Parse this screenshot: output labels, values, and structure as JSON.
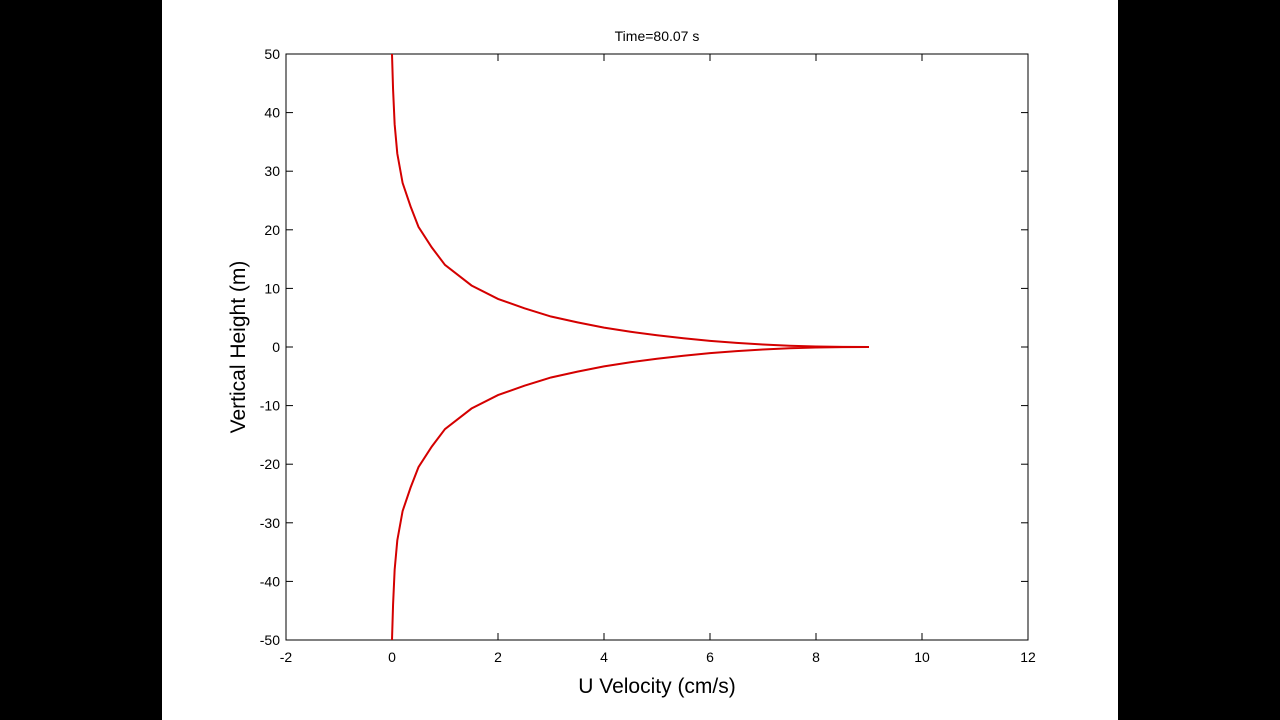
{
  "chart_data": {
    "type": "line",
    "title": "Time=80.07 s",
    "xlabel": "U Velocity (cm/s)",
    "ylabel": "Vertical Height (m)",
    "xlim": [
      -2,
      12
    ],
    "ylim": [
      -50,
      50
    ],
    "xticks": [
      -2,
      0,
      2,
      4,
      6,
      8,
      10,
      12
    ],
    "yticks": [
      50,
      40,
      30,
      20,
      10,
      0,
      -10,
      -20,
      -30,
      -40,
      -50
    ],
    "grid": false,
    "legend": "none",
    "colors": {
      "line": "#d40000",
      "axes": "#000000",
      "background": "#ffffff",
      "frame": "#000000"
    },
    "series": [
      {
        "x": [
          0.0,
          0.02,
          0.05,
          0.1,
          0.2,
          0.35,
          0.5,
          0.75,
          1.0,
          1.5,
          2.0,
          2.5,
          3.0,
          3.5,
          4.0,
          4.5,
          5.0,
          5.5,
          6.0,
          6.5,
          7.0,
          7.5,
          8.0,
          8.5,
          9.0,
          8.5,
          8.0,
          7.5,
          7.0,
          6.5,
          6.0,
          5.5,
          5.0,
          4.5,
          4.0,
          3.5,
          3.0,
          2.5,
          2.0,
          1.5,
          1.0,
          0.75,
          0.5,
          0.35,
          0.2,
          0.1,
          0.05,
          0.02,
          0.0
        ],
        "y": [
          50,
          44,
          38,
          33,
          28,
          24,
          20.5,
          17,
          14,
          10.5,
          8.2,
          6.6,
          5.2,
          4.2,
          3.3,
          2.6,
          2.0,
          1.5,
          1.05,
          0.7,
          0.42,
          0.22,
          0.08,
          0.02,
          0.0,
          -0.02,
          -0.08,
          -0.22,
          -0.42,
          -0.7,
          -1.05,
          -1.5,
          -2.0,
          -2.6,
          -3.3,
          -4.2,
          -5.2,
          -6.6,
          -8.2,
          -10.5,
          -14,
          -17,
          -20.5,
          -24,
          -28,
          -33,
          -38,
          -44,
          -50
        ]
      }
    ]
  }
}
